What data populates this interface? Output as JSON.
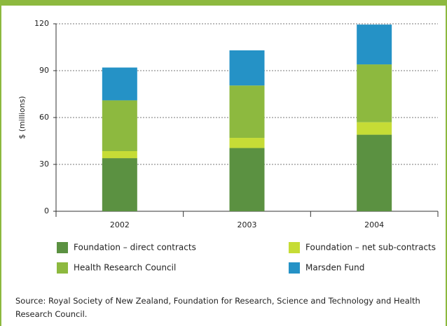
{
  "chart_data": {
    "type": "stacked_bar",
    "ylabel": "$ (millions)",
    "categories": [
      "2002",
      "2003",
      "2004"
    ],
    "series": [
      {
        "name": "Foundation – direct contracts",
        "color": "#5b9141",
        "values": [
          34,
          40.5,
          49
        ]
      },
      {
        "name": "Foundation – net sub-contracts",
        "color": "#c6dc36",
        "values": [
          4.5,
          6.5,
          8
        ]
      },
      {
        "name": "Health Research Council",
        "color": "#8db93f",
        "values": [
          32.5,
          33.5,
          37
        ]
      },
      {
        "name": "Marsden Fund",
        "color": "#2592c6",
        "values": [
          21,
          22.5,
          25.5
        ]
      }
    ],
    "ylim": [
      0,
      120
    ],
    "yticks": [
      0,
      30,
      60,
      90,
      120
    ],
    "grid": true,
    "source": "Source: Royal Society of New Zealand, Foundation for Research, Science and Technology and Health Research Council."
  }
}
